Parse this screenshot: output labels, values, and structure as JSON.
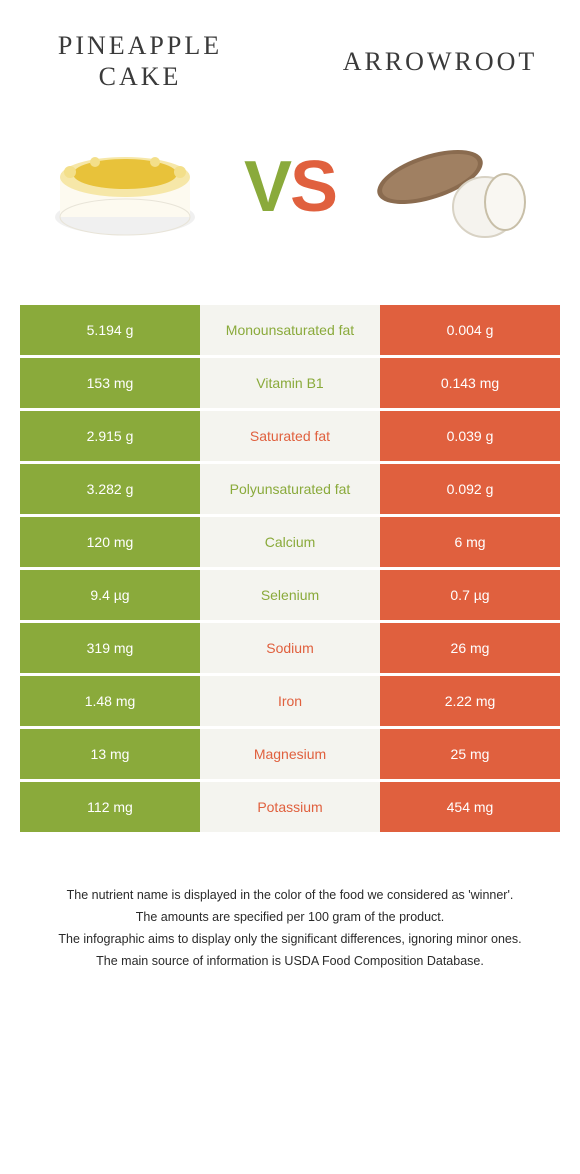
{
  "colors": {
    "left": "#8aaa3b",
    "right": "#e0603e",
    "mid_bg": "#f4f4ef",
    "text_dark": "#3a3a3a"
  },
  "header": {
    "left_title_line1": "PINEAPPLE",
    "left_title_line2": "CAKE",
    "right_title": "ARROWROOT"
  },
  "vs": {
    "v": "V",
    "s": "S"
  },
  "rows": [
    {
      "left": "5.194 g",
      "mid": "Monounsaturated fat",
      "right": "0.004 g",
      "winner": "left"
    },
    {
      "left": "153 mg",
      "mid": "Vitamin B1",
      "right": "0.143 mg",
      "winner": "left"
    },
    {
      "left": "2.915 g",
      "mid": "Saturated fat",
      "right": "0.039 g",
      "winner": "right"
    },
    {
      "left": "3.282 g",
      "mid": "Polyunsaturated fat",
      "right": "0.092 g",
      "winner": "left"
    },
    {
      "left": "120 mg",
      "mid": "Calcium",
      "right": "6 mg",
      "winner": "left"
    },
    {
      "left": "9.4 µg",
      "mid": "Selenium",
      "right": "0.7 µg",
      "winner": "left"
    },
    {
      "left": "319 mg",
      "mid": "Sodium",
      "right": "26 mg",
      "winner": "right"
    },
    {
      "left": "1.48 mg",
      "mid": "Iron",
      "right": "2.22 mg",
      "winner": "right"
    },
    {
      "left": "13 mg",
      "mid": "Magnesium",
      "right": "25 mg",
      "winner": "right"
    },
    {
      "left": "112 mg",
      "mid": "Potassium",
      "right": "454 mg",
      "winner": "right"
    }
  ],
  "footnotes": [
    "The nutrient name is displayed in the color of the food we considered as 'winner'.",
    "The amounts are specified per 100 gram of the product.",
    "The infographic aims to display only the significant differences, ignoring minor ones.",
    "The main source of information is USDA Food Composition Database."
  ]
}
